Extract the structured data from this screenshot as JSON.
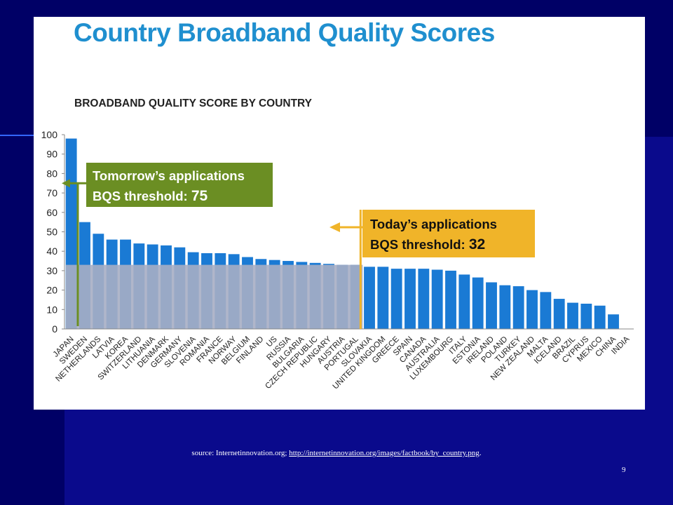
{
  "slide": {
    "title": "Country Broadband Quality Scores",
    "source_prefix": "source: Internetinnovation.org; ",
    "source_link": "http://internetinnovation.org/images/factbook/by_country.png",
    "source_suffix": ".",
    "page_number": "9"
  },
  "colors": {
    "bar": "#1a7ad4",
    "below_threshold": "#a7aec4",
    "green_box": "#6b8e23",
    "orange_box": "#f0b429",
    "title": "#1f8fcf"
  },
  "annotations": {
    "tomorrow_line1": "Tomorrow’s applications",
    "tomorrow_line2": "BQS threshold: ",
    "tomorrow_value": "75",
    "today_line1": "Today’s applications",
    "today_line2": "BQS threshold: ",
    "today_value": "32"
  },
  "chart_data": {
    "type": "bar",
    "title": "BROADBAND QUALITY SCORE BY COUNTRY",
    "xlabel": "",
    "ylabel": "",
    "ylim": [
      0,
      100
    ],
    "yticks": [
      0,
      10,
      20,
      30,
      40,
      50,
      60,
      70,
      80,
      90,
      100
    ],
    "categories": [
      "JAPAN",
      "SWEDEN",
      "NETHERLANDS",
      "LATVIA",
      "KOREA",
      "SWITZERLAND",
      "LITHUANIA",
      "DENMARK",
      "GERMANY",
      "SLOVENIA",
      "ROMANIA",
      "FRANCE",
      "NORWAY",
      "BELGIUM",
      "FINLAND",
      "US",
      "RUSSIA",
      "BULGARIA",
      "CZECH REPUBLIC",
      "HUNGARY",
      "AUSTRIA",
      "PORTUGAL",
      "SLOVAKIA",
      "UNITED KINGDOM",
      "GREECE",
      "SPAIN",
      "CANADA",
      "AUSTRALIA",
      "LUXEMBOURG",
      "ITALY",
      "ESTONIA",
      "IRELAND",
      "POLAND",
      "TURKEY",
      "NEW ZEALAND",
      "MALTA",
      "ICELAND",
      "BRAZIL",
      "CYPRUS",
      "MEXICO",
      "CHINA",
      "INDIA"
    ],
    "values": [
      98,
      55,
      49,
      46,
      46,
      44,
      43.5,
      43,
      42,
      39.5,
      39,
      39,
      38.5,
      37,
      36,
      35.5,
      35,
      34.5,
      34,
      33.5,
      33,
      33,
      32,
      32,
      31,
      31,
      31,
      30.5,
      30,
      28,
      26.5,
      24,
      22.5,
      22,
      20,
      19,
      15.5,
      13.5,
      13,
      12,
      7.5,
      0
    ],
    "thresholds": [
      75,
      32
    ],
    "grid": false,
    "legend": "none"
  }
}
